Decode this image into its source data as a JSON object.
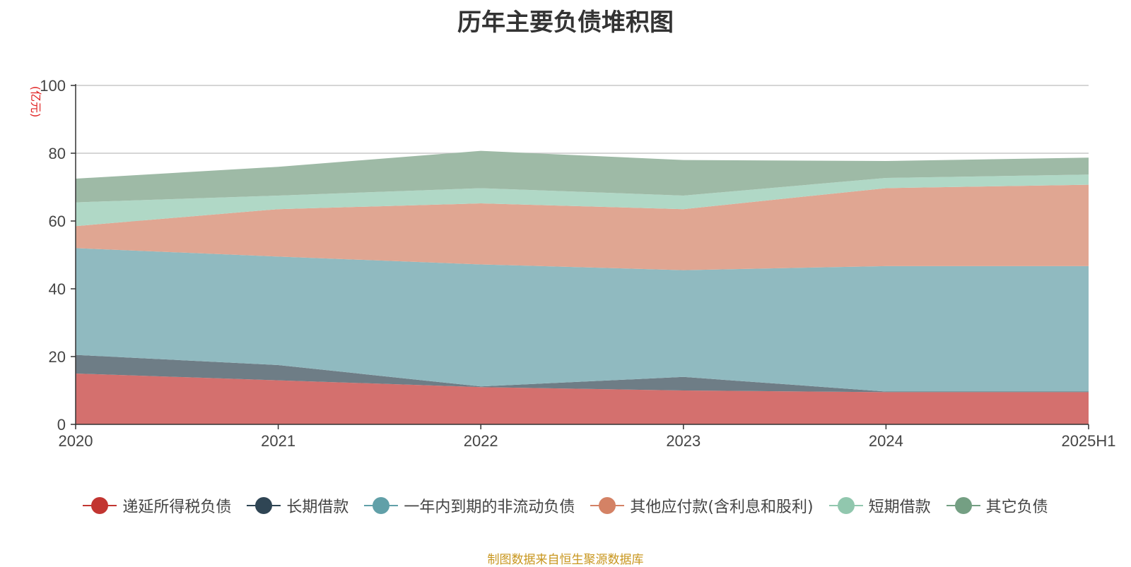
{
  "title": "历年主要负债堆积图",
  "unit_label": "(亿元)",
  "source_note": "制图数据来自恒生聚源数据库",
  "chart_data": {
    "type": "area",
    "stacked": true,
    "title": "历年主要负债堆积图",
    "ylabel": "(亿元)",
    "ylim": [
      0,
      100
    ],
    "yticks": [
      0,
      20,
      40,
      60,
      80,
      100
    ],
    "grid": true,
    "legend_position": "bottom",
    "categories": [
      "2020",
      "2021",
      "2022",
      "2023",
      "2024",
      "2025H1"
    ],
    "series": [
      {
        "name": "递延所得税负债",
        "color": "#c23531",
        "fill": "#d4706e",
        "values": [
          15.0,
          13.0,
          11.0,
          10.0,
          9.5,
          9.5
        ]
      },
      {
        "name": "长期借款",
        "color": "#2f4554",
        "fill": "#6e7d86",
        "values": [
          5.5,
          4.5,
          0.2,
          4.0,
          0.2,
          0.2
        ]
      },
      {
        "name": "一年内到期的非流动负债",
        "color": "#61a0a8",
        "fill": "#90bac0",
        "values": [
          31.5,
          32.0,
          36.0,
          31.5,
          37.0,
          37.0
        ]
      },
      {
        "name": "其他应付款(含利息和股利)",
        "color": "#d48265",
        "fill": "#e0a692",
        "values": [
          6.5,
          14.0,
          18.0,
          18.0,
          23.0,
          24.0
        ]
      },
      {
        "name": "短期借款",
        "color": "#91c7ae",
        "fill": "#b0d8c6",
        "values": [
          7.0,
          4.0,
          4.5,
          4.0,
          3.0,
          3.0
        ]
      },
      {
        "name": "其它负债",
        "color": "#749f83",
        "fill": "#9eba a6",
        "values": [
          7.0,
          8.5,
          11.0,
          10.5,
          5.0,
          5.0
        ]
      }
    ]
  }
}
